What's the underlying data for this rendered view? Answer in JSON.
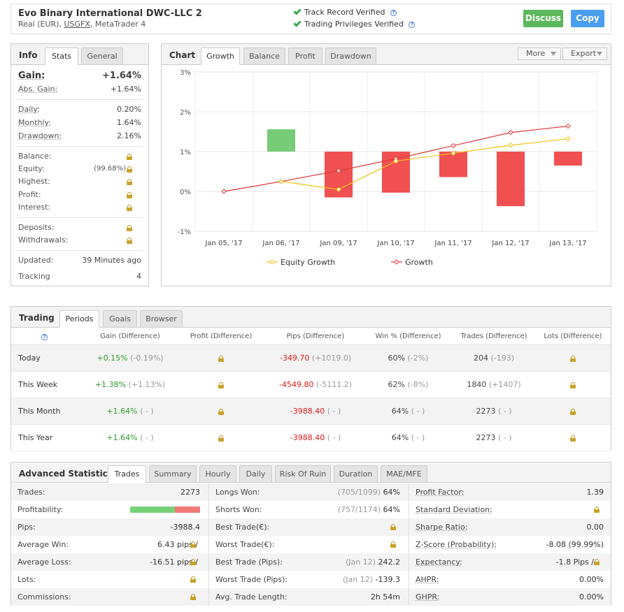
{
  "header": {
    "title": "Evo Binary International DWC-LLC 2",
    "subtitle_prefix": "Real (EUR),",
    "broker": "USGFX",
    "subtitle_suffix": ", MetaTrader 4",
    "verified_1": "Track Record Verified",
    "verified_2": "Trading Privileges Verified",
    "discuss": "Discuss",
    "copy": "Copy",
    "colors": {
      "discuss": "#5cb85c",
      "copy": "#4a9ef0",
      "check": "#3aa84a"
    }
  },
  "info": {
    "title": "Info",
    "tabs": [
      "Stats",
      "General"
    ],
    "gain_label": "Gain:",
    "gain_value": "+1.64%",
    "abs_gain_label": "Abs. Gain:",
    "abs_gain_value": "+1.64%",
    "daily_label": "Daily:",
    "daily_value": "0.20%",
    "monthly_label": "Monthly:",
    "monthly_value": "1.64%",
    "drawdown_label": "Drawdown:",
    "drawdown_value": "2.16%",
    "balance_label": "Balance:",
    "equity_label": "Equity:",
    "equity_value": "(99.68%)",
    "highest_label": "Highest:",
    "profit_label": "Profit:",
    "interest_label": "Interest:",
    "deposits_label": "Deposits:",
    "withdrawals_label": "Withdrawals:",
    "updated_label": "Updated:",
    "updated_value": "39 Minutes ago",
    "tracking_label": "Tracking",
    "tracking_value": "4"
  },
  "chart_panel": {
    "title": "Chart",
    "tabs": [
      "Growth",
      "Balance",
      "Profit",
      "Drawdown"
    ],
    "more": "More",
    "export": "Export"
  },
  "chart_data": {
    "type": "bar+line",
    "categories": [
      "Jan 05, '17",
      "Jan 06, '17",
      "Jan 09, '17",
      "Jan 10, '17",
      "Jan 11, '17",
      "Jan 12, '17",
      "Jan 13, '17"
    ],
    "ylim": [
      -1,
      3
    ],
    "yticks": [
      "3%",
      "2%",
      "1%",
      "0%",
      "-1%"
    ],
    "bars": [
      null,
      0.56,
      -1.15,
      -1.03,
      -0.64,
      -1.37,
      -0.35
    ],
    "bar_base": 1,
    "series": [
      {
        "name": "Equity Growth",
        "color": "#f0c419",
        "values": [
          null,
          0.25,
          0.05,
          0.76,
          0.96,
          1.16,
          1.32
        ]
      },
      {
        "name": "Growth",
        "color": "#e03a3a",
        "values": [
          0,
          0.25,
          0.52,
          0.82,
          1.15,
          1.48,
          1.64
        ]
      }
    ],
    "bar_colors": {
      "positive": "#77cc77",
      "negative": "#f05050"
    },
    "grid": true,
    "legend": "bottom"
  },
  "trading": {
    "title": "Trading",
    "tabs": [
      "Periods",
      "Goals",
      "Browser"
    ],
    "headers": [
      "Gain (Difference)",
      "Profit (Difference)",
      "Pips (Difference)",
      "Win % (Difference)",
      "Trades (Difference)",
      "Lots (Difference)"
    ],
    "rows": [
      {
        "period": "Today",
        "gain": "+0.15%",
        "gain_diff": "(-0.19%)",
        "pips": "-349.70",
        "pips_diff": "(+1019.0)",
        "win": "60%",
        "win_diff": "(-2%)",
        "trades": "204",
        "trades_diff": "(-193)"
      },
      {
        "period": "This Week",
        "gain": "+1.38%",
        "gain_diff": "(+1.13%)",
        "pips": "-4549.80",
        "pips_diff": "(-5111.2)",
        "win": "62%",
        "win_diff": "(-8%)",
        "trades": "1840",
        "trades_diff": "(+1407)"
      },
      {
        "period": "This Month",
        "gain": "+1.64%",
        "gain_diff": "( - )",
        "pips": "-3988.40",
        "pips_diff": "( - )",
        "win": "64%",
        "win_diff": "( - )",
        "trades": "2273",
        "trades_diff": "( - )"
      },
      {
        "period": "This Year",
        "gain": "+1.64%",
        "gain_diff": "( - )",
        "pips": "-3988.40",
        "pips_diff": "( - )",
        "win": "64%",
        "win_diff": "( - )",
        "trades": "2273",
        "trades_diff": "( - )"
      }
    ]
  },
  "advanced": {
    "title": "Advanced Statistics",
    "tabs": [
      "Trades",
      "Summary",
      "Hourly",
      "Daily",
      "Risk Of Ruin",
      "Duration",
      "MAE/MFE"
    ],
    "col1": [
      {
        "label": "Trades:",
        "value": "2273"
      },
      {
        "label": "Profitability:",
        "value": ""
      },
      {
        "label": "Pips:",
        "value": "-3988.4"
      },
      {
        "label": "Average Win:",
        "value": "6.43 pips /"
      },
      {
        "label": "Average Loss:",
        "value": "-16.51 pips /"
      },
      {
        "label": "Lots:",
        "value": ""
      },
      {
        "label": "Commissions:",
        "value": ""
      }
    ],
    "profitability_win_fraction": 0.64,
    "col2": [
      {
        "label": "Longs Won:",
        "note": "(705/1099)",
        "value": "64%"
      },
      {
        "label": "Shorts Won:",
        "note": "(757/1174)",
        "value": "64%"
      },
      {
        "label": "Best Trade(€):",
        "note": "",
        "value": ""
      },
      {
        "label": "Worst Trade(€):",
        "note": "",
        "value": ""
      },
      {
        "label": "Best Trade (Pips):",
        "note": "(Jan 12)",
        "value": "242.2"
      },
      {
        "label": "Worst Trade (Pips):",
        "note": "(Jan 12)",
        "value": "-139.3"
      },
      {
        "label": "Avg. Trade Length:",
        "note": "",
        "value": "2h 54m"
      }
    ],
    "col3": [
      {
        "label": "Profit Factor:",
        "value": "1.39"
      },
      {
        "label": "Standard Deviation:",
        "value": ""
      },
      {
        "label": "Sharpe Ratio:",
        "value": "0.00"
      },
      {
        "label": "Z-Score (Probability):",
        "value": "-8.08 (99.99%)"
      },
      {
        "label": "Expectancy:",
        "value": "-1.8 Pips /"
      },
      {
        "label": "AHPR:",
        "value": "0.00%"
      },
      {
        "label": "GHPR:",
        "value": "0.00%"
      }
    ]
  }
}
